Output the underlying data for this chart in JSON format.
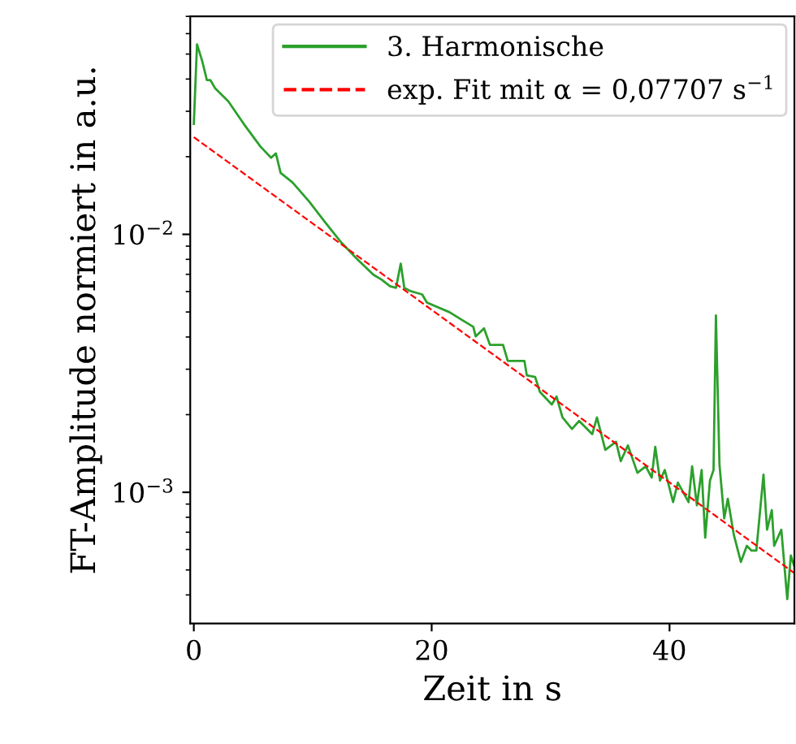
{
  "chart_data": {
    "type": "line",
    "xlabel": "Zeit in s",
    "ylabel": "FT-Amplitude normiert in a.u.",
    "log": "y",
    "grid": false,
    "legend": "top right",
    "xlim": [
      -0.3,
      50.5
    ],
    "xticks": [
      0,
      20,
      40
    ],
    "ylim": [
      0.00031,
      0.07
    ],
    "yticks": [
      {
        "value": 0.001,
        "label": "10$^{−3}$"
      },
      {
        "value": 0.01,
        "label": "10$^{−2}$"
      }
    ],
    "series": [
      {
        "name": "3. Harmonische",
        "color": "#2ca02c",
        "line_style": "solid",
        "x": [
          0,
          0.27,
          0.7,
          1.1,
          1.4,
          1.8,
          2.9,
          4.2,
          5.6,
          6.5,
          6.9,
          7.3,
          8.3,
          9.7,
          11.0,
          12.4,
          13.7,
          15.1,
          15.8,
          16.5,
          17.0,
          17.4,
          17.7,
          18.2,
          19.2,
          19.6,
          21.5,
          22.6,
          23.5,
          23.7,
          24.4,
          24.9,
          26.0,
          26.4,
          27.8,
          28.0,
          28.7,
          29.1,
          30.1,
          30.5,
          31.0,
          31.8,
          32.4,
          33.5,
          33.9,
          34.6,
          35.5,
          35.9,
          36.5,
          37.3,
          38.0,
          38.5,
          38.8,
          39.2,
          39.6,
          40.3,
          40.7,
          41.6,
          41.9,
          42.3,
          42.7,
          43.0,
          43.4,
          43.7,
          43.9,
          44.2,
          44.6,
          44.9,
          45.4,
          46.0,
          46.5,
          46.9,
          47.3,
          47.9,
          48.2,
          48.6,
          48.8,
          49.4,
          49.9,
          50.2,
          50.5
        ],
        "values": [
          0.0268,
          0.0545,
          0.0471,
          0.0396,
          0.0396,
          0.0368,
          0.0328,
          0.0268,
          0.0219,
          0.0198,
          0.0206,
          0.0173,
          0.0159,
          0.0134,
          0.0112,
          0.0093,
          0.00805,
          0.00697,
          0.00667,
          0.00629,
          0.0062,
          0.0077,
          0.0062,
          0.00603,
          0.00585,
          0.00544,
          0.00499,
          0.00464,
          0.00438,
          0.00402,
          0.00432,
          0.00373,
          0.00373,
          0.00323,
          0.00323,
          0.00284,
          0.0028,
          0.00245,
          0.00219,
          0.00235,
          0.00195,
          0.00176,
          0.00189,
          0.00168,
          0.00195,
          0.00146,
          0.00157,
          0.00132,
          0.00152,
          0.00119,
          0.00126,
          0.00114,
          0.0015,
          0.00111,
          0.00122,
          0.000916,
          0.00109,
          0.000916,
          0.00126,
          0.000891,
          0.00122,
          0.000667,
          0.00111,
          0.00122,
          0.00485,
          0.00128,
          0.000792,
          0.000944,
          0.000686,
          0.000537,
          0.00062,
          0.000594,
          0.000594,
          0.00117,
          0.000716,
          0.000853,
          0.00062,
          0.000716,
          0.000385,
          0.000569,
          0.000514
        ]
      },
      {
        "name": "exp. Fit mit α = 0,07707 s$^{−1}$",
        "color": "#ff0000",
        "line_style": "dashed",
        "x": [
          0,
          50.5
        ],
        "values": [
          0.0238,
          0.000486
        ]
      }
    ]
  }
}
